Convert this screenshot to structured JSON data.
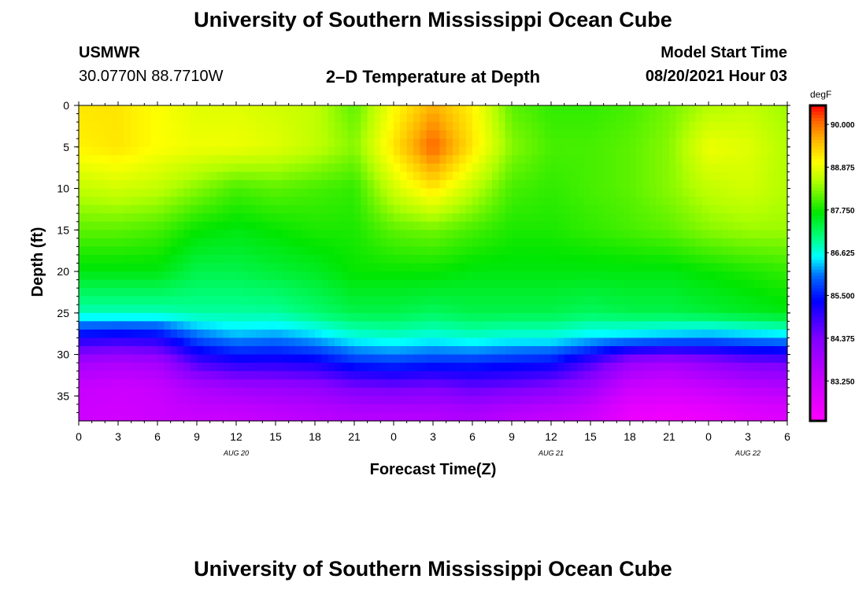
{
  "page": {
    "title_top": "University of Southern Mississippi Ocean Cube",
    "title_bottom": "University of Southern Mississippi Ocean Cube",
    "station": "USMWR",
    "location": "30.0770N  88.7710W",
    "model_start_label": "Model Start Time",
    "model_start_value": "08/20/2021 Hour 03",
    "plot_title": "2–D Temperature at Depth"
  },
  "chart_data": {
    "type": "heatmap",
    "title": "2–D Temperature at Depth",
    "xlabel": "Forecast Time(Z)",
    "ylabel": "Depth (ft)",
    "units": "degF",
    "x_hours": [
      0,
      3,
      6,
      9,
      12,
      15,
      18,
      21,
      24,
      27,
      30,
      33,
      36,
      39,
      42,
      45,
      48,
      51,
      54
    ],
    "x_tick_labels": [
      "0",
      "3",
      "6",
      "9",
      "12",
      "15",
      "18",
      "21",
      "0",
      "3",
      "6",
      "9",
      "12",
      "15",
      "18",
      "21",
      "0",
      "3",
      "6"
    ],
    "date_labels": [
      {
        "text": "AUG  20",
        "hour": 12
      },
      {
        "text": "AUG  21",
        "hour": 36
      },
      {
        "text": "AUG  22",
        "hour": 51
      }
    ],
    "y_ticks": [
      0,
      5,
      10,
      15,
      20,
      25,
      30,
      35
    ],
    "ylim": [
      0,
      38
    ],
    "xlim": [
      0,
      54
    ],
    "colorbar": {
      "min": 82.2,
      "max": 90.5,
      "tick_values": [
        90.0,
        88.875,
        87.75,
        86.625,
        85.5,
        84.375,
        83.25
      ],
      "tick_labels": [
        "90.000",
        "88.875",
        "87.750",
        "86.625",
        "85.500",
        "84.375",
        "83.250"
      ]
    },
    "depths": [
      0,
      5,
      10,
      15,
      20,
      25,
      28,
      31,
      34,
      37
    ],
    "temperatures": [
      [
        89.2,
        89.1,
        88.6,
        88.1,
        87.6,
        86.8,
        85.2,
        83.8,
        83.3,
        83.2
      ],
      [
        89.2,
        89.2,
        88.7,
        88.1,
        87.6,
        86.8,
        85.1,
        83.7,
        83.2,
        83.1
      ],
      [
        89.0,
        89.0,
        88.6,
        88.0,
        87.6,
        86.8,
        85.2,
        83.8,
        83.3,
        83.2
      ],
      [
        88.8,
        88.9,
        88.3,
        87.7,
        87.3,
        86.9,
        85.9,
        84.8,
        83.7,
        83.3
      ],
      [
        88.8,
        88.9,
        88.0,
        87.6,
        87.3,
        86.9,
        86.2,
        85.1,
        83.9,
        83.3
      ],
      [
        88.7,
        88.8,
        88.1,
        87.7,
        87.4,
        86.9,
        86.1,
        85.1,
        84.0,
        83.4
      ],
      [
        88.6,
        88.6,
        88.0,
        87.8,
        87.5,
        87.1,
        86.3,
        85.2,
        84.1,
        83.5
      ],
      [
        88.1,
        88.3,
        87.9,
        87.8,
        87.7,
        87.3,
        86.6,
        85.6,
        84.4,
        83.6
      ],
      [
        89.0,
        89.2,
        88.7,
        88.1,
        87.7,
        87.3,
        86.7,
        85.7,
        84.5,
        83.6
      ],
      [
        89.6,
        90.1,
        89.2,
        88.2,
        87.7,
        87.2,
        86.6,
        85.6,
        84.4,
        83.6
      ],
      [
        89.1,
        89.2,
        88.6,
        88.0,
        87.6,
        87.3,
        86.7,
        85.6,
        84.6,
        83.7
      ],
      [
        88.1,
        88.3,
        88.0,
        87.8,
        87.6,
        87.3,
        86.6,
        85.5,
        84.5,
        83.5
      ],
      [
        87.9,
        88.0,
        87.9,
        87.8,
        87.6,
        87.3,
        86.6,
        85.4,
        84.3,
        83.4
      ],
      [
        87.9,
        88.0,
        88.0,
        87.9,
        87.6,
        87.2,
        86.4,
        84.8,
        83.9,
        83.2
      ],
      [
        88.0,
        88.1,
        88.1,
        88.0,
        87.6,
        87.3,
        86.3,
        84.0,
        83.2,
        82.6
      ],
      [
        88.2,
        88.3,
        88.3,
        88.1,
        87.6,
        87.3,
        86.2,
        83.8,
        83.1,
        82.5
      ],
      [
        88.5,
        88.9,
        88.6,
        88.3,
        87.7,
        87.4,
        86.1,
        84.1,
        83.3,
        82.6
      ],
      [
        88.6,
        88.8,
        88.7,
        88.4,
        87.8,
        87.5,
        86.2,
        84.4,
        83.5,
        82.8
      ],
      [
        88.4,
        88.5,
        88.5,
        88.4,
        87.9,
        87.6,
        86.3,
        84.5,
        83.6,
        82.9
      ]
    ]
  }
}
